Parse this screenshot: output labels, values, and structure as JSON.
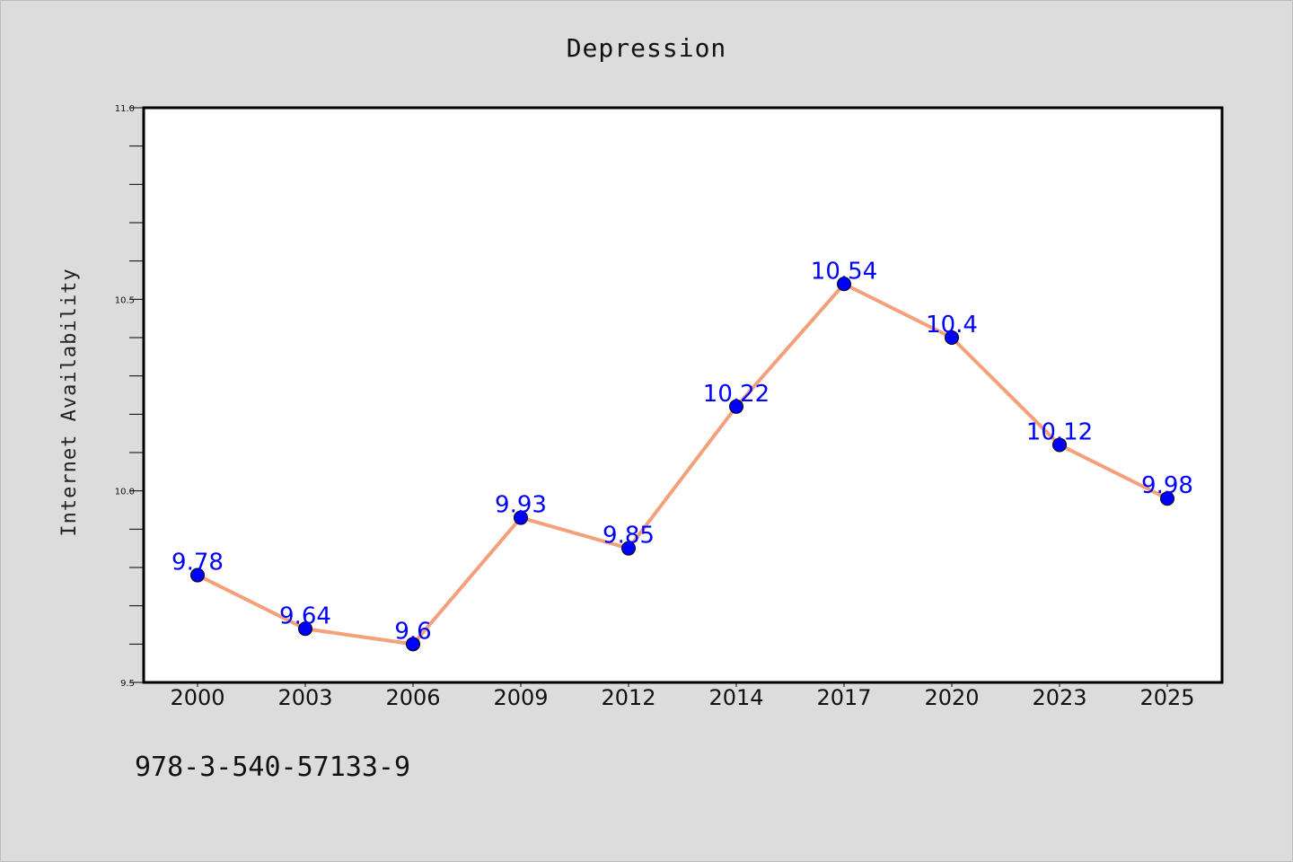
{
  "chart_data": {
    "type": "line",
    "title": "Depression",
    "xlabel": "",
    "ylabel": "Internet Availability",
    "categories": [
      "2000",
      "2003",
      "2006",
      "2009",
      "2012",
      "2014",
      "2017",
      "2020",
      "2023",
      "2025"
    ],
    "series": [
      {
        "values": [
          9.78,
          9.64,
          9.6,
          9.93,
          9.85,
          10.22,
          10.54,
          10.4,
          10.12,
          9.98
        ],
        "line_color": "#f4a07a",
        "marker_color": "#0000ff"
      }
    ],
    "data_labels": [
      "9.78",
      "9.64",
      "9.6",
      "9.93",
      "9.85",
      "10.22",
      "10.54",
      "10.4",
      "10.12",
      "9.98"
    ],
    "ylim": [
      9.5,
      11.0
    ],
    "yticks": [
      "9.5",
      "10.0",
      "10.5",
      "11.0"
    ],
    "grid": false,
    "legend": "none"
  },
  "footer_text": "978-3-540-57133-9",
  "colors": {
    "background": "#dcdcdc",
    "plot_area": "#ffffff",
    "data_label": "#0000ff"
  }
}
